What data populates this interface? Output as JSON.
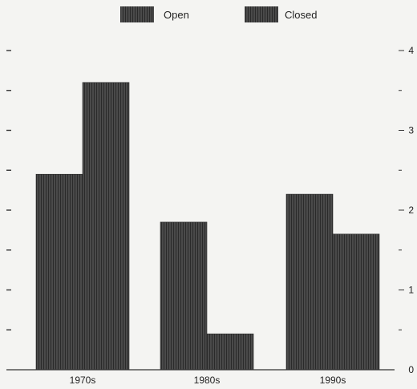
{
  "chart_data": {
    "type": "bar",
    "categories": [
      "1970s",
      "1980s",
      "1990s"
    ],
    "series": [
      {
        "name": "Open",
        "values": [
          2.45,
          1.85,
          2.2
        ]
      },
      {
        "name": "Closed",
        "values": [
          3.6,
          0.45,
          1.7
        ]
      }
    ],
    "ylim": [
      0,
      4
    ],
    "y_ticks_right": [
      0,
      1,
      2,
      3,
      4
    ],
    "xlabel": "",
    "ylabel": "",
    "legend_position": "top-center",
    "grid": false,
    "colors": {
      "bar": "#4a4a4a",
      "stripe": "#2a2a2a",
      "axis": "#333333"
    }
  }
}
